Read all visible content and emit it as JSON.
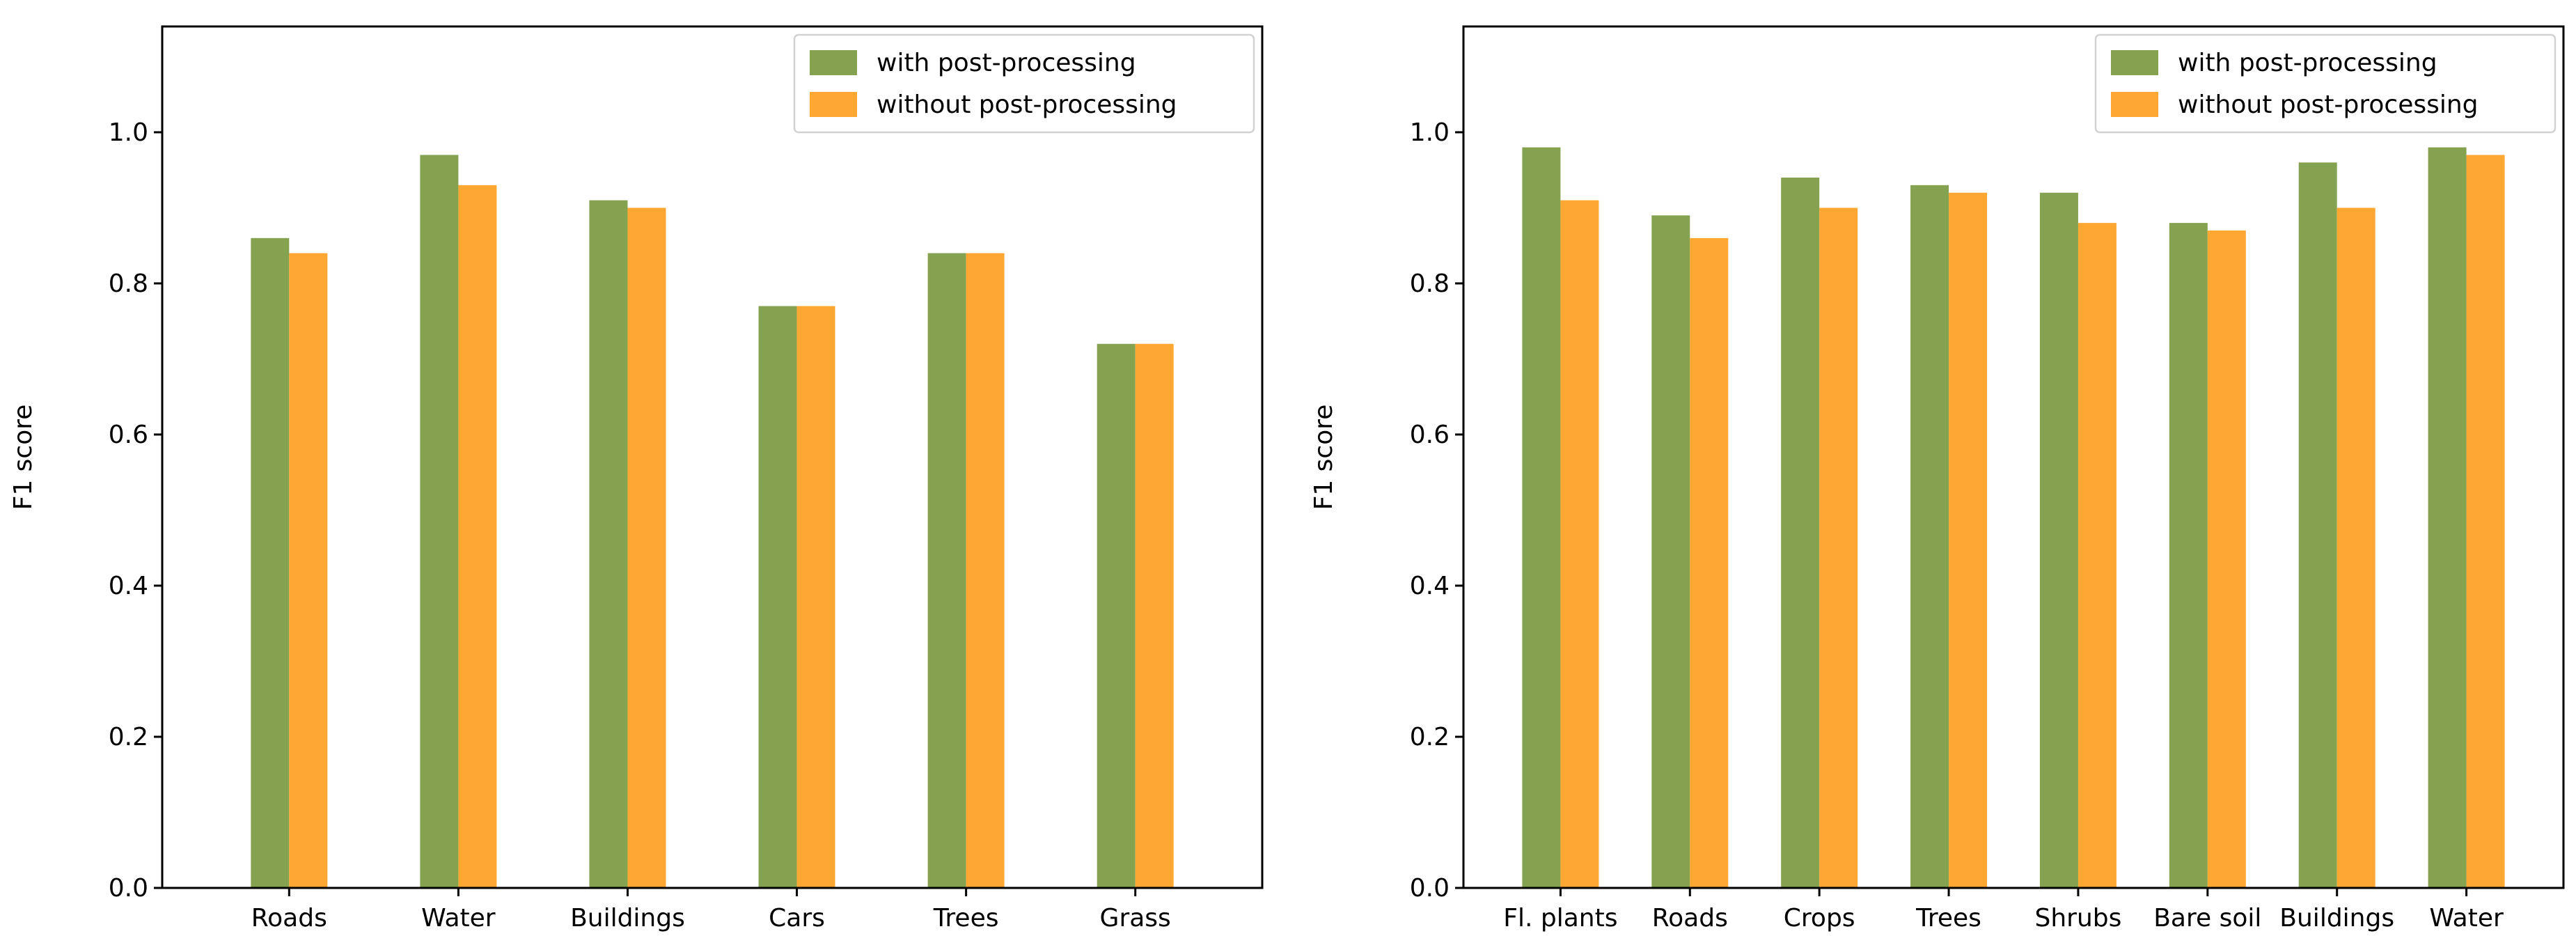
{
  "colors": {
    "with": "#85a250",
    "without": "#ffa733"
  },
  "chart_data": [
    {
      "type": "bar",
      "title": "",
      "xlabel": "",
      "ylabel": "F1 score",
      "ylim": [
        0.0,
        1.14
      ],
      "yticks": [
        0.0,
        0.2,
        0.4,
        0.6,
        0.8,
        1.0
      ],
      "ytick_labels": [
        "0.0",
        "0.2",
        "0.4",
        "0.6",
        "0.8",
        "1.0"
      ],
      "legend_position": "top-right",
      "categories": [
        "Roads",
        "Water",
        "Buildings",
        "Cars",
        "Trees",
        "Grass"
      ],
      "series": [
        {
          "name": "with post-processing",
          "values": [
            0.86,
            0.97,
            0.91,
            0.77,
            0.84,
            0.72
          ]
        },
        {
          "name": "without post-processing",
          "values": [
            0.84,
            0.93,
            0.9,
            0.77,
            0.84,
            0.72
          ]
        }
      ]
    },
    {
      "type": "bar",
      "title": "",
      "xlabel": "",
      "ylabel": "F1 score",
      "ylim": [
        0.0,
        1.14
      ],
      "yticks": [
        0.0,
        0.2,
        0.4,
        0.6,
        0.8,
        1.0
      ],
      "ytick_labels": [
        "0.0",
        "0.2",
        "0.4",
        "0.6",
        "0.8",
        "1.0"
      ],
      "legend_position": "top-right",
      "categories": [
        "Fl. plants",
        "Roads",
        "Crops",
        "Trees",
        "Shrubs",
        "Bare soil",
        "Buildings",
        "Water"
      ],
      "series": [
        {
          "name": "with post-processing",
          "values": [
            0.98,
            0.89,
            0.94,
            0.93,
            0.92,
            0.88,
            0.96,
            0.98
          ]
        },
        {
          "name": "without post-processing",
          "values": [
            0.91,
            0.86,
            0.9,
            0.92,
            0.88,
            0.87,
            0.9,
            0.97
          ]
        }
      ]
    }
  ]
}
